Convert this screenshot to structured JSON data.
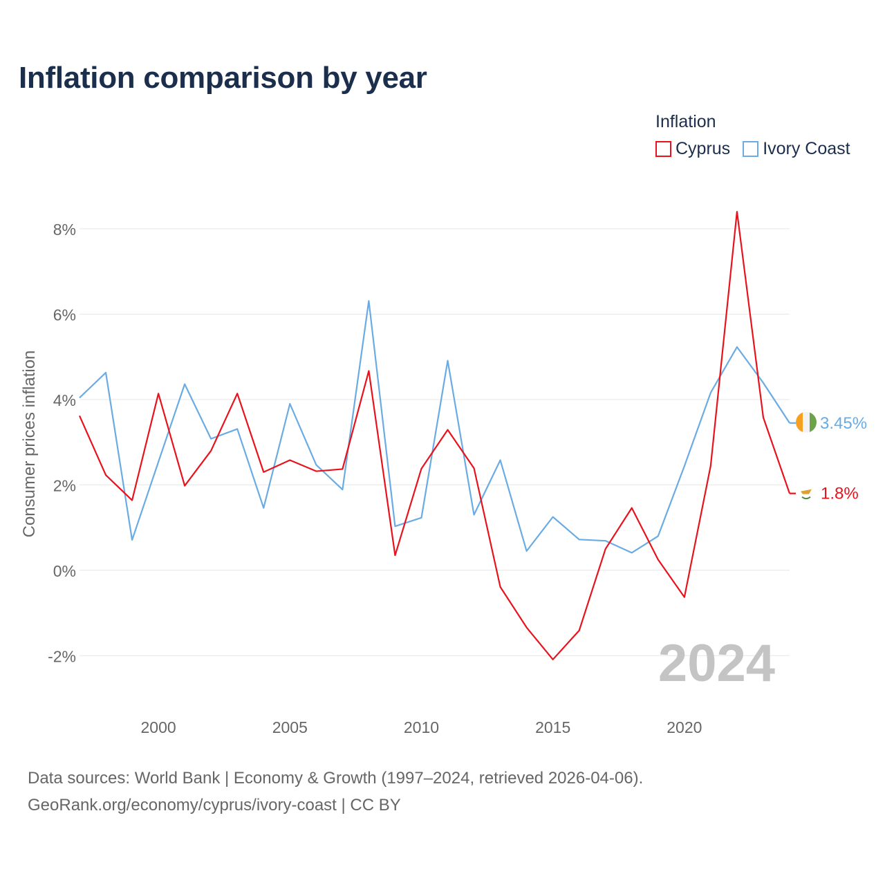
{
  "title": "Inflation comparison by year",
  "legend": {
    "title": "Inflation",
    "items": [
      {
        "label": "Cyprus",
        "color": "#e8121c"
      },
      {
        "label": "Ivory Coast",
        "color": "#6aabe3"
      }
    ]
  },
  "source": {
    "line1": "Data sources: World Bank | Economy & Growth (1997–2024, retrieved 2026-04-06).",
    "line2": "GeoRank.org/economy/cyprus/ivory-coast | CC BY"
  },
  "chart_data": {
    "type": "line",
    "title": "Inflation comparison by year",
    "xlabel": "",
    "ylabel": "Consumer prices inflation",
    "x": [
      1997,
      1998,
      1999,
      2000,
      2001,
      2002,
      2003,
      2004,
      2005,
      2006,
      2007,
      2008,
      2009,
      2010,
      2011,
      2012,
      2013,
      2014,
      2015,
      2016,
      2017,
      2018,
      2019,
      2020,
      2021,
      2022,
      2023,
      2024
    ],
    "xlim": [
      1997,
      2024
    ],
    "ylim": [
      -3,
      8.5
    ],
    "x_ticks": [
      2000,
      2005,
      2010,
      2015,
      2020
    ],
    "y_ticks": [
      -2,
      0,
      2,
      4,
      6,
      8
    ],
    "y_tick_labels": [
      "-2%",
      "0%",
      "2%",
      "4%",
      "6%",
      "8%"
    ],
    "grid": true,
    "year_watermark": "2024",
    "series": [
      {
        "name": "Cyprus",
        "color": "#e8121c",
        "values": [
          3.62,
          2.23,
          1.64,
          4.14,
          1.98,
          2.8,
          4.14,
          2.3,
          2.58,
          2.32,
          2.37,
          4.67,
          0.35,
          2.38,
          3.29,
          2.39,
          -0.39,
          -1.34,
          -2.09,
          -1.41,
          0.5,
          1.46,
          0.25,
          -0.63,
          2.45,
          8.4,
          3.58,
          1.8
        ],
        "end_label": "1.8%",
        "flag_name": "cyprus-flag-icon"
      },
      {
        "name": "Ivory Coast",
        "color": "#6aabe3",
        "values": [
          4.04,
          4.63,
          0.71,
          2.54,
          4.36,
          3.08,
          3.31,
          1.46,
          3.9,
          2.47,
          1.89,
          6.31,
          1.03,
          1.23,
          4.91,
          1.3,
          2.58,
          0.45,
          1.25,
          0.72,
          0.69,
          0.41,
          0.8,
          2.44,
          4.16,
          5.23,
          4.39,
          3.45
        ],
        "end_label": "3.45%",
        "flag_name": "ivory-coast-flag-icon"
      }
    ]
  }
}
